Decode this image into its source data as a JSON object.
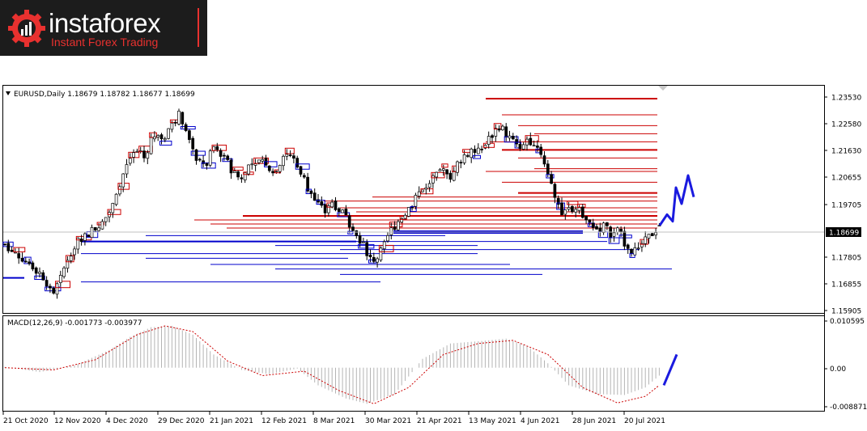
{
  "logo": {
    "brand": "instaforex",
    "tagline": "Instant Forex Trading",
    "icon": "gear-bars-icon"
  },
  "main_pane": {
    "header": "EURUSD,Daily  1.18679 1.18782 1.18677 1.18699",
    "current_price_label": "1.18699",
    "y_ticks": [
      "1.23530",
      "1.22580",
      "1.21630",
      "1.20655",
      "1.19705",
      "1.18699",
      "1.17805",
      "1.16855",
      "1.15905"
    ]
  },
  "macd_pane": {
    "header": "MACD(12,26,9) -0.001773 -0.003977",
    "y_ticks": [
      "0.010595",
      "0.00",
      "-0.008871"
    ]
  },
  "x_ticks": [
    "21 Oct 2020",
    "12 Nov 2020",
    "4 Dec 2020",
    "29 Dec 2020",
    "21 Jan 2021",
    "12 Feb 2021",
    "8 Mar 2021",
    "30 Mar 2021",
    "21 Apr 2021",
    "13 May 2021",
    "4 Jun 2021",
    "28 Jun 2021",
    "20 Jul 2021"
  ],
  "colors": {
    "bull_box": "#cc0000",
    "bear_box": "#0000cc",
    "forecast": "#1a1adf",
    "macd_hist": "#b4b4b4",
    "macd_signal": "#cc0000"
  },
  "chart_data": {
    "type": "candlestick",
    "symbol": "EURUSD",
    "timeframe": "Daily",
    "last_bar": {
      "open": 1.18679,
      "high": 1.18782,
      "low": 1.18677,
      "close": 1.18699
    },
    "ylim": [
      1.1545,
      1.2388
    ],
    "close_path": [
      [
        0,
        1.18
      ],
      [
        4,
        1.176
      ],
      [
        8,
        1.172
      ],
      [
        11,
        1.168
      ],
      [
        14,
        1.162
      ],
      [
        16,
        1.167
      ],
      [
        18,
        1.175
      ],
      [
        21,
        1.182
      ],
      [
        24,
        1.184
      ],
      [
        26,
        1.186
      ],
      [
        28,
        1.188
      ],
      [
        30,
        1.192
      ],
      [
        32,
        1.2
      ],
      [
        34,
        1.206
      ],
      [
        36,
        1.212
      ],
      [
        38,
        1.214
      ],
      [
        40,
        1.212
      ],
      [
        42,
        1.219
      ],
      [
        44,
        1.222
      ],
      [
        46,
        1.218
      ],
      [
        48,
        1.225
      ],
      [
        50,
        1.228
      ],
      [
        52,
        1.222
      ],
      [
        54,
        1.214
      ],
      [
        56,
        1.211
      ],
      [
        58,
        1.21
      ],
      [
        60,
        1.216
      ],
      [
        62,
        1.214
      ],
      [
        64,
        1.21
      ],
      [
        66,
        1.206
      ],
      [
        68,
        1.204
      ],
      [
        70,
        1.209
      ],
      [
        72,
        1.211
      ],
      [
        74,
        1.211
      ],
      [
        76,
        1.209
      ],
      [
        78,
        1.207
      ],
      [
        80,
        1.214
      ],
      [
        82,
        1.213
      ],
      [
        84,
        1.21
      ],
      [
        86,
        1.204
      ],
      [
        88,
        1.199
      ],
      [
        90,
        1.194
      ],
      [
        92,
        1.192
      ],
      [
        94,
        1.196
      ],
      [
        96,
        1.193
      ],
      [
        98,
        1.19
      ],
      [
        100,
        1.186
      ],
      [
        102,
        1.182
      ],
      [
        104,
        1.177
      ],
      [
        106,
        1.173
      ],
      [
        108,
        1.177
      ],
      [
        110,
        1.183
      ],
      [
        112,
        1.187
      ],
      [
        114,
        1.19
      ],
      [
        116,
        1.193
      ],
      [
        118,
        1.197
      ],
      [
        120,
        1.201
      ],
      [
        122,
        1.203
      ],
      [
        124,
        1.205
      ],
      [
        126,
        1.207
      ],
      [
        128,
        1.203
      ],
      [
        130,
        1.21
      ],
      [
        132,
        1.213
      ],
      [
        134,
        1.215
      ],
      [
        136,
        1.214
      ],
      [
        138,
        1.217
      ],
      [
        140,
        1.221
      ],
      [
        142,
        1.224
      ],
      [
        144,
        1.221
      ],
      [
        146,
        1.218
      ],
      [
        148,
        1.214
      ],
      [
        150,
        1.219
      ],
      [
        152,
        1.218
      ],
      [
        154,
        1.214
      ],
      [
        156,
        1.207
      ],
      [
        158,
        1.199
      ],
      [
        160,
        1.191
      ],
      [
        162,
        1.193
      ],
      [
        164,
        1.194
      ],
      [
        166,
        1.19
      ],
      [
        168,
        1.187
      ],
      [
        170,
        1.184
      ],
      [
        172,
        1.188
      ],
      [
        174,
        1.183
      ],
      [
        176,
        1.185
      ],
      [
        178,
        1.181
      ],
      [
        180,
        1.178
      ],
      [
        182,
        1.178
      ],
      [
        184,
        1.181
      ],
      [
        186,
        1.184
      ],
      [
        188,
        1.18699
      ]
    ],
    "resistance_levels": [
      1.234,
      1.228,
      1.224,
      1.221,
      1.218,
      1.215,
      1.212,
      1.208,
      1.207,
      1.203,
      1.199,
      1.1975,
      1.196,
      1.1935,
      1.192,
      1.1905,
      1.189,
      1.1875,
      1.186
    ],
    "support_levels": [
      1.1845,
      1.1832,
      1.181,
      1.1795,
      1.178,
      1.1765,
      1.1748,
      1.1725,
      1.1708,
      1.1688,
      1.166
    ],
    "forecast_path": [
      1.18699,
      1.191,
      1.1885,
      1.201,
      1.195,
      1.2055,
      1.1975
    ],
    "macd": {
      "ylim": [
        -0.008871,
        0.010595
      ],
      "histogram_path": [
        [
          0,
          0.0002
        ],
        [
          10,
          -0.001
        ],
        [
          20,
          0.0005
        ],
        [
          30,
          0.004
        ],
        [
          36,
          0.007
        ],
        [
          42,
          0.0092
        ],
        [
          48,
          0.0095
        ],
        [
          54,
          0.0075
        ],
        [
          60,
          0.003
        ],
        [
          68,
          -0.0005
        ],
        [
          76,
          -0.0015
        ],
        [
          84,
          -0.0002
        ],
        [
          90,
          -0.004
        ],
        [
          98,
          -0.007
        ],
        [
          104,
          -0.0082
        ],
        [
          112,
          -0.006
        ],
        [
          120,
          0.002
        ],
        [
          128,
          0.0055
        ],
        [
          136,
          0.006
        ],
        [
          144,
          0.0066
        ],
        [
          150,
          0.005
        ],
        [
          156,
          0.001
        ],
        [
          162,
          -0.004
        ],
        [
          170,
          -0.006
        ],
        [
          178,
          -0.0062
        ],
        [
          184,
          -0.0045
        ],
        [
          188,
          -0.0018
        ]
      ],
      "signal_path": [
        [
          0,
          0.0
        ],
        [
          14,
          -0.0005
        ],
        [
          26,
          0.0018
        ],
        [
          38,
          0.0075
        ],
        [
          46,
          0.0095
        ],
        [
          54,
          0.0082
        ],
        [
          64,
          0.0015
        ],
        [
          74,
          -0.0018
        ],
        [
          86,
          -0.0008
        ],
        [
          96,
          -0.0052
        ],
        [
          106,
          -0.0082
        ],
        [
          116,
          -0.0045
        ],
        [
          126,
          0.003
        ],
        [
          136,
          0.0055
        ],
        [
          146,
          0.0062
        ],
        [
          156,
          0.003
        ],
        [
          166,
          -0.0045
        ],
        [
          176,
          -0.008
        ],
        [
          184,
          -0.0065
        ],
        [
          188,
          -0.004
        ]
      ],
      "forecast_line": [
        -0.004,
        0.003
      ]
    }
  }
}
